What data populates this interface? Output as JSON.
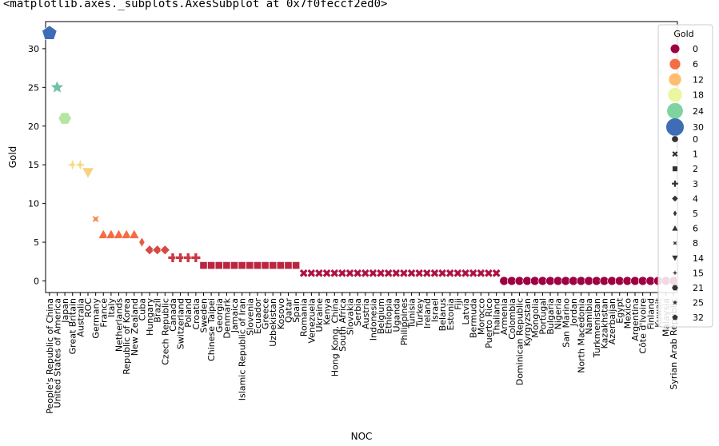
{
  "output_repr": "<matplotlib.axes._subplots.AxesSubplot at 0x7f0feccf2ed0>",
  "chart_data": {
    "type": "scatter",
    "xlabel": "NOC",
    "ylabel": "Gold",
    "ylim": [
      -1.5,
      33.5
    ],
    "yticks": [
      0,
      5,
      10,
      15,
      20,
      25,
      30
    ],
    "grid": false,
    "legend_placement": "top-right",
    "palette_note": "Spectral",
    "categories": [
      "People's Republic of China",
      "United States of America",
      "Japan",
      "Great Britain",
      "Australia",
      "ROC",
      "Germany",
      "France",
      "Italy",
      "Netherlands",
      "Republic of Korea",
      "New Zealand",
      "Cuba",
      "Hungary",
      "Brazil",
      "Czech Republic",
      "Canada",
      "Switzerland",
      "Poland",
      "Croatia",
      "Sweden",
      "Chinese Taipei",
      "Georgia",
      "Denmark",
      "Jamaica",
      "Islamic Republic of Iran",
      "Slovenia",
      "Ecuador",
      "Greece",
      "Uzbekistan",
      "Kosovo",
      "Qatar",
      "Spain",
      "Romania",
      "Venezuela",
      "Ukraine",
      "Kenya",
      "Hong Kong, China",
      "South Africa",
      "Slovakia",
      "Serbia",
      "Austria",
      "Indonesia",
      "Belgium",
      "Ethiopia",
      "Uganda",
      "Philippines",
      "Tunisia",
      "Turkey",
      "Ireland",
      "Israel",
      "Belarus",
      "Estonia",
      "Fiji",
      "Latvia",
      "Bermuda",
      "Morocco",
      "Puerto Rico",
      "Thailand",
      "Armenia",
      "Colombia",
      "Dominican Republic",
      "Kyrgyzstan",
      "Mongolia",
      "Portugal",
      "Bulgaria",
      "Nigeria",
      "San Marino",
      "Jordan",
      "North Macedonia",
      "Namibia",
      "Turkmenistan",
      "Kazakhstan",
      "Azerbaijan",
      "Egypt",
      "Mexico",
      "Argentina",
      "Côte d'Ivoire",
      "Finland",
      "Kuwait",
      "Malaysia",
      "Syrian Arab Republic"
    ],
    "values": [
      32,
      25,
      21,
      15,
      15,
      14,
      8,
      6,
      6,
      6,
      6,
      6,
      5,
      4,
      4,
      4,
      3,
      3,
      3,
      3,
      2,
      2,
      2,
      2,
      2,
      2,
      2,
      2,
      2,
      2,
      2,
      2,
      2,
      1,
      1,
      1,
      1,
      1,
      1,
      1,
      1,
      1,
      1,
      1,
      1,
      1,
      1,
      1,
      1,
      1,
      1,
      1,
      1,
      1,
      1,
      1,
      1,
      1,
      1,
      0,
      0,
      0,
      0,
      0,
      0,
      0,
      0,
      0,
      0,
      0,
      0,
      0,
      0,
      0,
      0,
      0,
      0,
      0,
      0,
      0,
      0,
      0
    ],
    "legend": {
      "title": "Gold",
      "hue_entries": [
        {
          "label": "0",
          "color": "#9e0142"
        },
        {
          "label": "6",
          "color": "#f46d43"
        },
        {
          "label": "12",
          "color": "#fdbf6f"
        },
        {
          "label": "18",
          "color": "#eaf7a0"
        },
        {
          "label": "24",
          "color": "#7fd3a0"
        },
        {
          "label": "30",
          "color": "#3e6db5"
        }
      ],
      "style_entries": [
        {
          "label": "0",
          "icon": "circle-icon"
        },
        {
          "label": "1",
          "icon": "x-icon"
        },
        {
          "label": "2",
          "icon": "square-icon"
        },
        {
          "label": "3",
          "icon": "plus-icon"
        },
        {
          "label": "4",
          "icon": "diamond-icon"
        },
        {
          "label": "5",
          "icon": "thin-diamond-icon"
        },
        {
          "label": "6",
          "icon": "triangle-up-icon"
        },
        {
          "label": "8",
          "icon": "tilted-x-icon"
        },
        {
          "label": "14",
          "icon": "triangle-down-icon"
        },
        {
          "label": "15",
          "icon": "star4-icon"
        },
        {
          "label": "21",
          "icon": "hexagon-icon"
        },
        {
          "label": "25",
          "icon": "star-icon"
        },
        {
          "label": "32",
          "icon": "pentagon-icon"
        }
      ]
    }
  }
}
